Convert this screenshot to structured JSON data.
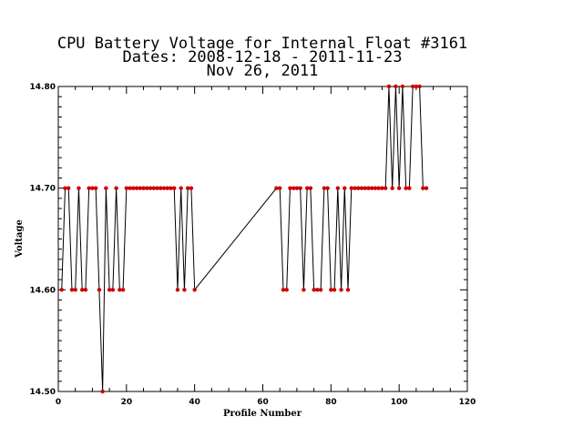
{
  "chart_data": {
    "type": "line",
    "title_lines": [
      "CPU Battery Voltage for Internal Float #3161",
      "Dates:  2008-12-18 -  2011-11-23",
      "Nov 26, 2011"
    ],
    "xlabel": "Profile Number",
    "ylabel": "Voltage",
    "xlim": [
      0,
      120
    ],
    "ylim": [
      14.5,
      14.8
    ],
    "x_ticks": [
      0,
      20,
      40,
      60,
      80,
      100,
      120
    ],
    "y_ticks": [
      "14.50",
      "14.60",
      "14.70",
      "14.80"
    ],
    "line_color": "#000000",
    "marker_color": "#cc0000",
    "grid": false,
    "series": [
      {
        "x": [
          1,
          2,
          3,
          4,
          5,
          6,
          7,
          8,
          9,
          10,
          11,
          12,
          13,
          14,
          15,
          16,
          17,
          18,
          19,
          20,
          21,
          22,
          23,
          24,
          25,
          26,
          27,
          28,
          29,
          30,
          31,
          32,
          33,
          34,
          35,
          36,
          37,
          38,
          39,
          40,
          64,
          65,
          66,
          67,
          68,
          69,
          70,
          71,
          72,
          73,
          74,
          75,
          76,
          77,
          78,
          79,
          80,
          81,
          82,
          83,
          84,
          85,
          86,
          87,
          88,
          89,
          90,
          91,
          92,
          93,
          94,
          95,
          96,
          97,
          98,
          99,
          100,
          101,
          102,
          103,
          104,
          105,
          106,
          107,
          108
        ],
        "y": [
          14.6,
          14.7,
          14.7,
          14.6,
          14.6,
          14.7,
          14.6,
          14.6,
          14.7,
          14.7,
          14.7,
          14.6,
          14.5,
          14.7,
          14.6,
          14.6,
          14.7,
          14.6,
          14.6,
          14.7,
          14.7,
          14.7,
          14.7,
          14.7,
          14.7,
          14.7,
          14.7,
          14.7,
          14.7,
          14.7,
          14.7,
          14.7,
          14.7,
          14.7,
          14.6,
          14.7,
          14.6,
          14.7,
          14.7,
          14.6,
          14.7,
          14.7,
          14.6,
          14.6,
          14.7,
          14.7,
          14.7,
          14.7,
          14.6,
          14.7,
          14.7,
          14.6,
          14.6,
          14.6,
          14.7,
          14.7,
          14.6,
          14.6,
          14.7,
          14.6,
          14.7,
          14.6,
          14.7,
          14.7,
          14.7,
          14.7,
          14.7,
          14.7,
          14.7,
          14.7,
          14.7,
          14.7,
          14.7,
          14.8,
          14.7,
          14.8,
          14.7,
          14.8,
          14.7,
          14.7,
          14.8,
          14.8,
          14.8,
          14.7,
          14.7
        ]
      }
    ]
  }
}
